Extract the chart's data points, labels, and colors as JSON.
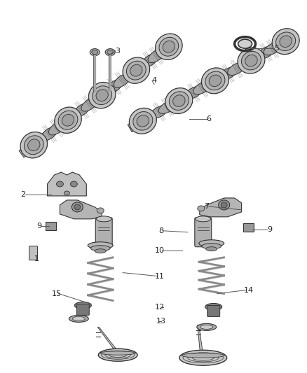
{
  "background_color": "#ffffff",
  "line_color": "#555555",
  "text_color": "#222222",
  "edge_color": "#333333",
  "shaft_color": "#bbbbbb",
  "lobe_color": "#999999",
  "dark_color": "#666666",
  "light_color": "#dddddd"
}
